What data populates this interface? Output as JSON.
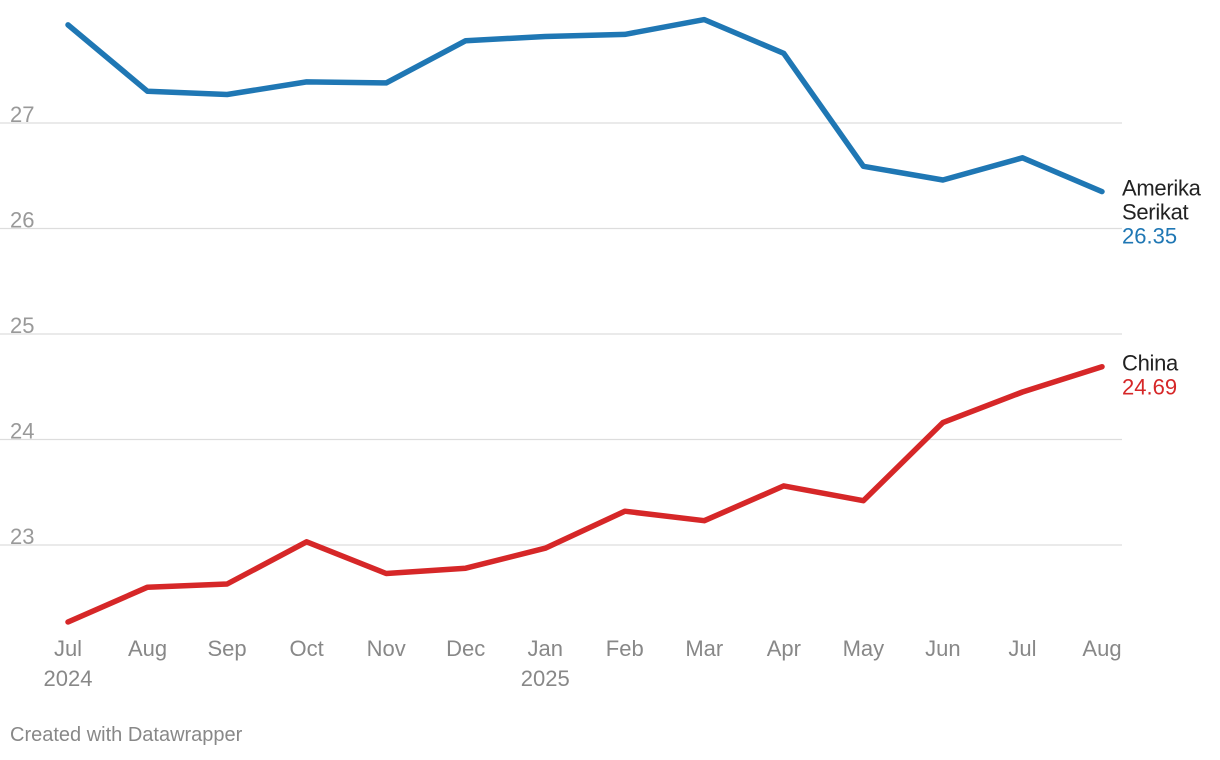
{
  "chart_data": {
    "type": "line",
    "title": "",
    "xlabel": "",
    "ylabel": "",
    "ylim": [
      22.2,
      28.0
    ],
    "yticks": [
      23,
      24,
      25,
      26,
      27
    ],
    "categories": [
      "Jul",
      "Aug",
      "Sep",
      "Oct",
      "Nov",
      "Dec",
      "Jan",
      "Feb",
      "Mar",
      "Apr",
      "May",
      "Jun",
      "Jul",
      "Aug"
    ],
    "year_labels": [
      {
        "index": 0,
        "label": "2024"
      },
      {
        "index": 6,
        "label": "2025"
      }
    ],
    "grid": true,
    "series": [
      {
        "name": "Amerika Serikat",
        "name_lines": [
          "Amerika",
          "Serikat"
        ],
        "color": "#1f77b4",
        "end_label": "26.35",
        "values": [
          27.93,
          27.3,
          27.27,
          27.39,
          27.38,
          27.78,
          27.82,
          27.84,
          27.98,
          27.66,
          26.59,
          26.46,
          26.67,
          26.35
        ]
      },
      {
        "name": "China",
        "name_lines": [
          "China"
        ],
        "color": "#d62728",
        "end_label": "24.69",
        "values": [
          22.27,
          22.6,
          22.63,
          23.03,
          22.73,
          22.78,
          22.97,
          23.32,
          23.23,
          23.56,
          23.42,
          24.16,
          24.45,
          24.69
        ]
      }
    ]
  },
  "footer": {
    "credit": "Created with Datawrapper"
  }
}
